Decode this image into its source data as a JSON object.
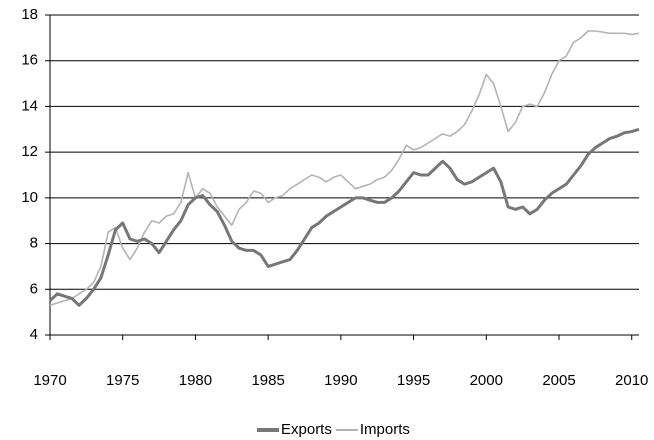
{
  "chart_data": {
    "type": "line",
    "x": [
      1970,
      1970.5,
      1971,
      1971.5,
      1972,
      1972.5,
      1973,
      1973.5,
      1974,
      1974.5,
      1975,
      1975.5,
      1976,
      1976.5,
      1977,
      1977.5,
      1978,
      1978.5,
      1979,
      1979.5,
      1980,
      1980.5,
      1981,
      1981.5,
      1982,
      1982.5,
      1983,
      1983.5,
      1984,
      1984.5,
      1985,
      1985.5,
      1986,
      1986.5,
      1987,
      1987.5,
      1988,
      1988.5,
      1989,
      1989.5,
      1990,
      1990.5,
      1991,
      1991.5,
      1992,
      1992.5,
      1993,
      1993.5,
      1994,
      1994.5,
      1995,
      1995.5,
      1996,
      1996.5,
      1997,
      1997.5,
      1998,
      1998.5,
      1999,
      1999.5,
      2000,
      2000.5,
      2001,
      2001.5,
      2002,
      2002.5,
      2003,
      2003.5,
      2004,
      2004.5,
      2005,
      2005.5,
      2006,
      2006.5,
      2007,
      2007.5,
      2008,
      2008.5,
      2009,
      2009.5,
      2010,
      2010.5
    ],
    "series": [
      {
        "name": "Exports",
        "color": "#777777",
        "values": [
          5.5,
          5.8,
          5.7,
          5.6,
          5.3,
          5.6,
          6.0,
          6.5,
          7.5,
          8.6,
          8.9,
          8.2,
          8.1,
          8.2,
          8.0,
          7.6,
          8.1,
          8.6,
          9.0,
          9.7,
          10.0,
          10.1,
          9.7,
          9.4,
          8.8,
          8.1,
          7.8,
          7.7,
          7.7,
          7.5,
          7.0,
          7.1,
          7.2,
          7.3,
          7.7,
          8.2,
          8.7,
          8.9,
          9.2,
          9.4,
          9.6,
          9.8,
          10.0,
          10.0,
          9.9,
          9.8,
          9.8,
          10.0,
          10.3,
          10.7,
          11.1,
          11.0,
          11.0,
          11.3,
          11.6,
          11.3,
          10.8,
          10.6,
          10.7,
          10.9,
          11.1,
          11.3,
          10.7,
          9.6,
          9.5,
          9.6,
          9.3,
          9.5,
          9.9,
          10.2,
          10.4,
          10.6,
          11.0,
          11.4,
          11.9,
          12.2,
          12.4,
          12.6,
          12.7,
          12.85,
          12.9,
          13.0
        ]
      },
      {
        "name": "Imports",
        "color": "#b4b4b4",
        "values": [
          5.3,
          5.4,
          5.5,
          5.6,
          5.8,
          6.0,
          6.3,
          7.0,
          8.5,
          8.7,
          7.8,
          7.3,
          7.8,
          8.5,
          9.0,
          8.9,
          9.2,
          9.3,
          9.8,
          11.1,
          10.0,
          10.4,
          10.2,
          9.6,
          9.2,
          8.8,
          9.5,
          9.8,
          10.3,
          10.2,
          9.8,
          10.0,
          10.1,
          10.4,
          10.6,
          10.8,
          11.0,
          10.9,
          10.7,
          10.9,
          11.0,
          10.7,
          10.4,
          10.5,
          10.6,
          10.8,
          10.9,
          11.2,
          11.7,
          12.3,
          12.1,
          12.2,
          12.4,
          12.6,
          12.8,
          12.7,
          12.9,
          13.2,
          13.8,
          14.5,
          15.4,
          15.0,
          14.0,
          12.9,
          13.3,
          14.0,
          14.1,
          14.0,
          14.6,
          15.4,
          16.0,
          16.2,
          16.8,
          17.0,
          17.3,
          17.3,
          17.25,
          17.2,
          17.2,
          17.2,
          17.15,
          17.2
        ]
      }
    ],
    "xlim": [
      1970,
      2010.5
    ],
    "xticks": [
      1970,
      1975,
      1980,
      1985,
      1990,
      1995,
      2000,
      2005,
      2010
    ],
    "ylim": [
      4,
      18
    ],
    "yticks": [
      4,
      6,
      8,
      10,
      12,
      14,
      16,
      18
    ],
    "grid": true
  }
}
